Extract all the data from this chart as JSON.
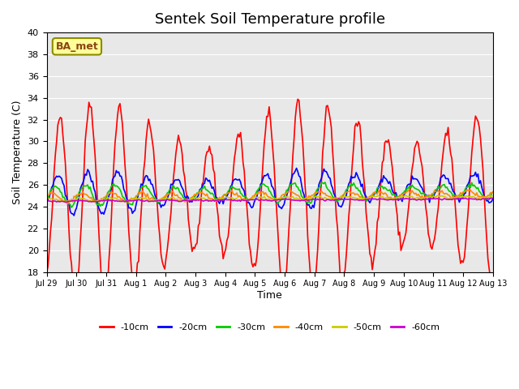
{
  "title": "Sentek Soil Temperature profile",
  "xlabel": "Time",
  "ylabel": "Soil Temperature (C)",
  "ylim": [
    18,
    40
  ],
  "yticks": [
    18,
    20,
    22,
    24,
    26,
    28,
    30,
    32,
    34,
    36,
    38,
    40
  ],
  "bg_color": "#e8e8e8",
  "annotation_text": "BA_met",
  "annotation_bg": "#ffff99",
  "annotation_border": "#8B8B00",
  "series_order": [
    "-10cm",
    "-20cm",
    "-30cm",
    "-40cm",
    "-50cm",
    "-60cm"
  ],
  "series": {
    "-10cm": {
      "color": "#ff0000",
      "lw": 1.2
    },
    "-20cm": {
      "color": "#0000ff",
      "lw": 1.2
    },
    "-30cm": {
      "color": "#00cc00",
      "lw": 1.2
    },
    "-40cm": {
      "color": "#ff8800",
      "lw": 1.2
    },
    "-50cm": {
      "color": "#cccc00",
      "lw": 1.2
    },
    "-60cm": {
      "color": "#cc00cc",
      "lw": 1.2
    }
  },
  "xtick_labels": [
    "Jul 29",
    "Jul 30",
    "Jul 31",
    "Aug 1",
    "Aug 2",
    "Aug 3",
    "Aug 4",
    "Aug 5",
    "Aug 6",
    "Aug 7",
    "Aug 8",
    "Aug 9",
    "Aug 10",
    "Aug 11",
    "Aug 12",
    "Aug 13"
  ],
  "n_days": 15,
  "pts_per_day": 24
}
